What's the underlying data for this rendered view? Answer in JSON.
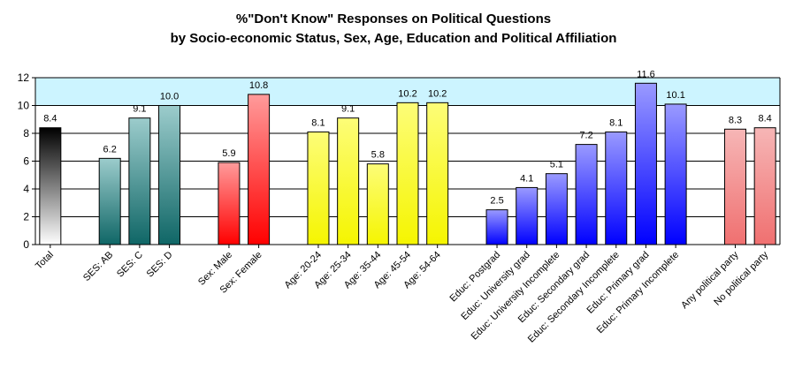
{
  "chart_data": {
    "type": "bar",
    "title": "%\"Don't Know\" Responses on Political Questions",
    "subtitle": "by Socio-economic Status, Sex, Age, Education and Political Affiliation",
    "ylim": [
      0,
      12
    ],
    "yticks": [
      0,
      2,
      4,
      6,
      8,
      10,
      12
    ],
    "grid": true,
    "legend": "none",
    "categories": [
      "Total",
      "SES: AB",
      "SES: C",
      "SES: D",
      "Sex: Male",
      "Sex: Female",
      "Age: 20-24",
      "Age: 25-34",
      "Age: 35-44",
      "Age: 45-54",
      "Age: 54-64",
      "Educ: Postgrad",
      "Educ: University grad",
      "Educ: University Incomplete",
      "Educ: Secondary grad",
      "Educ: Secondary Incomplete",
      "Educ: Primary grad",
      "Educ: Primary Incomplete",
      "Any political party",
      "No political party"
    ],
    "values": [
      8.4,
      6.2,
      9.1,
      10.0,
      5.9,
      10.8,
      8.1,
      9.1,
      5.8,
      10.2,
      10.2,
      2.5,
      4.1,
      5.1,
      7.2,
      8.1,
      11.6,
      10.1,
      8.3,
      8.4
    ],
    "value_labels": [
      "8.4",
      "6.2",
      "9.1",
      "10.0",
      "5.9",
      "10.8",
      "8.1",
      "9.1",
      "5.8",
      "10.2",
      "10.2",
      "2.5",
      "4.1",
      "5.1",
      "7.2",
      "8.1",
      "11.6",
      "10.1",
      "8.3",
      "8.4"
    ],
    "groups": [
      "total",
      "ses",
      "ses",
      "ses",
      "sex",
      "sex",
      "age",
      "age",
      "age",
      "age",
      "age",
      "educ",
      "educ",
      "educ",
      "educ",
      "educ",
      "educ",
      "educ",
      "party",
      "party"
    ],
    "colors": {
      "plot_band": "#ccf4ff",
      "gridline": "#000000",
      "total": "#000000",
      "ses": "#1a7070",
      "sex": "#ff0000",
      "age": "#f0f000",
      "educ": "#0000ff",
      "party": "#f07878"
    }
  }
}
